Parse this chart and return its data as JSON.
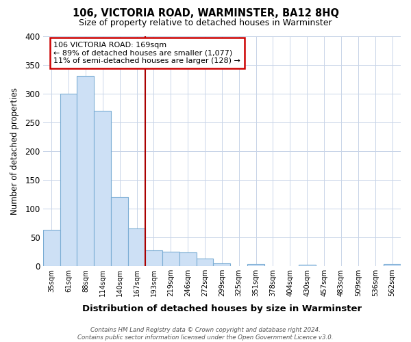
{
  "title": "106, VICTORIA ROAD, WARMINSTER, BA12 8HQ",
  "subtitle": "Size of property relative to detached houses in Warminster",
  "xlabel": "Distribution of detached houses by size in Warminster",
  "ylabel": "Number of detached properties",
  "bar_labels": [
    "35sqm",
    "61sqm",
    "88sqm",
    "114sqm",
    "140sqm",
    "167sqm",
    "193sqm",
    "219sqm",
    "246sqm",
    "272sqm",
    "299sqm",
    "325sqm",
    "351sqm",
    "378sqm",
    "404sqm",
    "430sqm",
    "457sqm",
    "483sqm",
    "509sqm",
    "536sqm",
    "562sqm"
  ],
  "bar_values": [
    63,
    300,
    330,
    270,
    120,
    65,
    27,
    25,
    24,
    13,
    4,
    0,
    3,
    0,
    0,
    2,
    0,
    0,
    0,
    0,
    3
  ],
  "bar_color": "#cde0f5",
  "bar_edge_color": "#7badd4",
  "vline_index": 6,
  "vline_color": "#aa0000",
  "ylim": [
    0,
    400
  ],
  "yticks": [
    0,
    50,
    100,
    150,
    200,
    250,
    300,
    350,
    400
  ],
  "annotation_title": "106 VICTORIA ROAD: 169sqm",
  "annotation_line1": "← 89% of detached houses are smaller (1,077)",
  "annotation_line2": "11% of semi-detached houses are larger (128) →",
  "annotation_box_color": "#ffffff",
  "annotation_box_edge": "#cc0000",
  "footer_line1": "Contains HM Land Registry data © Crown copyright and database right 2024.",
  "footer_line2": "Contains public sector information licensed under the Open Government Licence v3.0.",
  "background_color": "#ffffff",
  "grid_color": "#c8d4e8"
}
